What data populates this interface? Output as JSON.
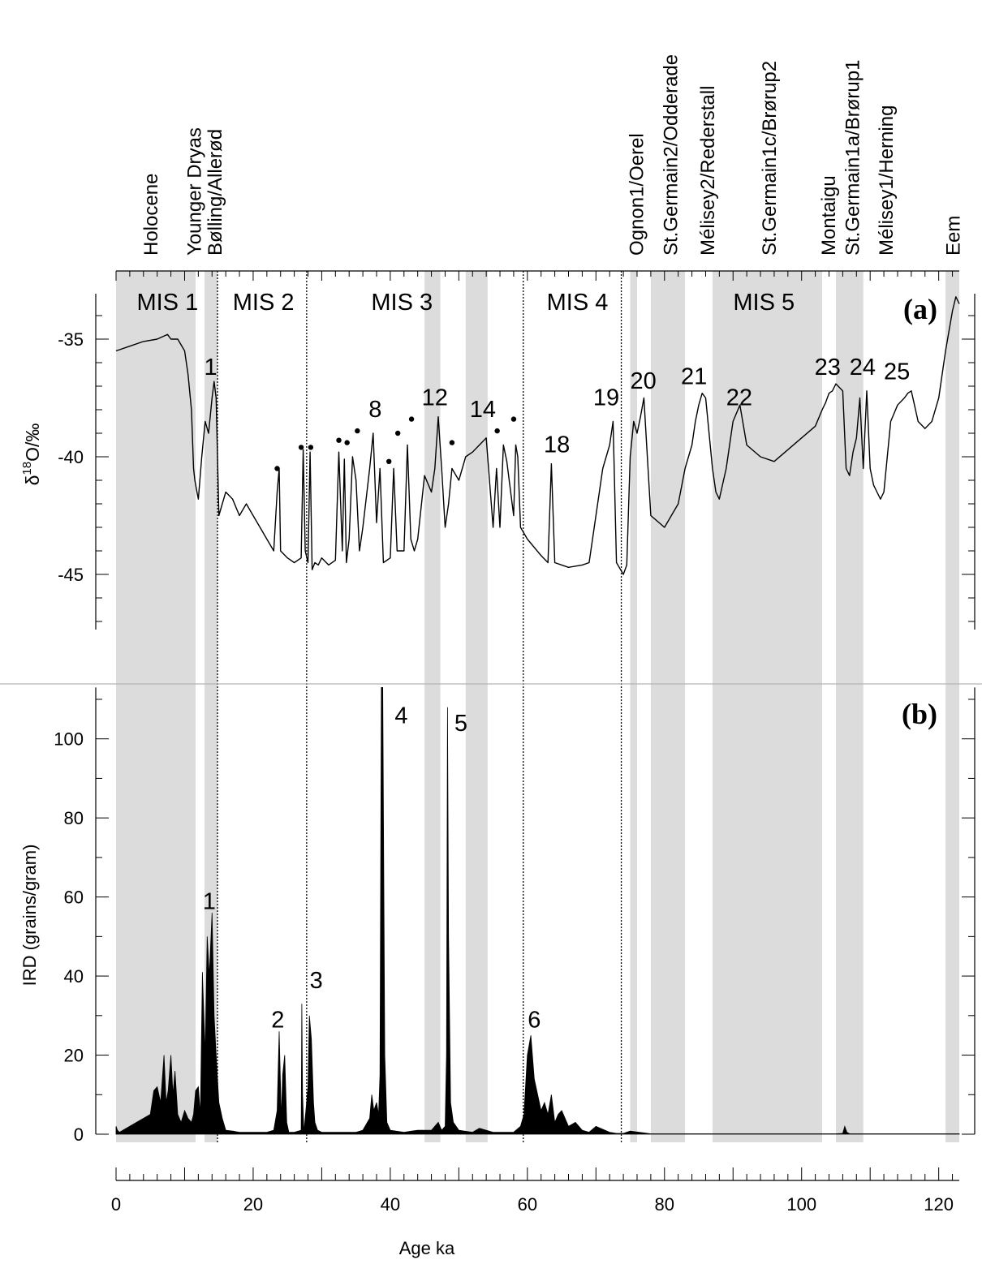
{
  "chart_data": [
    {
      "panel": "(a)",
      "type": "line",
      "ylabel": "δ18O/‰",
      "ylabel_parts": {
        "delta": "δ",
        "sup": "18",
        "rest": "O/‰"
      },
      "xlabel": "Age ka",
      "xlim": [
        0,
        123
      ],
      "ylim": [
        -49.5,
        -33
      ],
      "y_inverted": true,
      "yticks": [
        -35,
        -40,
        -45
      ],
      "ytick_labels": [
        "-35",
        "-40",
        "-45"
      ],
      "xticks": [
        0,
        20,
        40,
        60,
        80,
        100,
        120
      ],
      "xtick_labels": [
        "0",
        "20",
        "40",
        "60",
        "80",
        "100",
        "120"
      ],
      "series": [
        {
          "x": [
            0,
            2,
            4,
            6,
            7.5,
            8,
            9,
            10,
            10.5,
            11,
            11.3,
            11.5,
            11.8,
            12,
            12.5,
            13,
            13.5,
            14,
            14.3,
            14.6,
            14.8,
            15,
            15.5,
            16,
            17,
            18,
            19,
            20,
            21,
            22,
            23,
            23.5,
            23.8,
            24,
            25,
            26,
            27,
            27.3,
            27.6,
            28,
            28.3,
            28.6,
            29,
            29.5,
            30,
            31,
            32,
            32.5,
            33,
            33.3,
            33.6,
            34,
            34.5,
            35,
            35.5,
            36,
            37,
            37.5,
            38,
            38.5,
            39,
            40,
            40.5,
            41,
            42,
            42.5,
            43,
            43.5,
            44,
            45,
            46,
            46.5,
            47,
            47.5,
            48,
            48.5,
            49,
            50,
            51,
            52,
            53,
            54,
            55,
            55.5,
            56,
            56.5,
            57,
            58,
            58.3,
            58.6,
            59,
            60,
            62,
            63,
            63.5,
            64,
            65,
            66,
            68,
            69,
            69.5,
            70,
            71,
            72,
            72.5,
            73,
            74,
            74.5,
            75,
            75.5,
            76,
            76.5,
            77,
            78,
            80,
            82,
            83,
            84,
            84.5,
            85,
            85.5,
            86,
            87,
            87.5,
            88,
            89,
            90,
            91,
            92,
            94,
            96,
            98,
            100,
            102,
            103,
            103.5,
            104,
            104.5,
            105,
            106,
            106.5,
            107,
            107.5,
            108,
            108.5,
            109,
            109.5,
            110,
            110.5,
            111,
            111.5,
            112,
            113,
            114,
            115,
            115.5,
            116,
            117,
            118,
            119,
            120,
            121,
            122,
            122.5,
            123
          ],
          "y": [
            -35.5,
            -35.3,
            -35.1,
            -35,
            -34.8,
            -35,
            -35,
            -35.5,
            -36.5,
            -38,
            -40.5,
            -41,
            -41.5,
            -41.8,
            -40,
            -38.5,
            -39,
            -37.5,
            -36.8,
            -37.5,
            -40,
            -42.5,
            -42,
            -41.5,
            -41.8,
            -42.5,
            -42,
            -42.5,
            -43,
            -43.5,
            -44,
            -41.5,
            -40.5,
            -44,
            -44.3,
            -44.5,
            -44.3,
            -39.7,
            -44,
            -44.5,
            -39.8,
            -44.8,
            -44.5,
            -44.6,
            -44.3,
            -44.6,
            -44.4,
            -39.8,
            -44,
            -40.1,
            -44.5,
            -43.5,
            -40,
            -41,
            -44,
            -43,
            -40.5,
            -39,
            -42.8,
            -40.5,
            -44.5,
            -44.3,
            -40.5,
            -44,
            -44,
            -39.5,
            -43.5,
            -44,
            -43.5,
            -40.8,
            -41.5,
            -40.5,
            -38.3,
            -40.5,
            -43,
            -42,
            -40.5,
            -41,
            -40,
            -39.8,
            -39.5,
            -39.2,
            -43,
            -40.5,
            -43,
            -39.5,
            -40.2,
            -42.5,
            -39.5,
            -40,
            -43,
            -43.5,
            -44.2,
            -44.5,
            -40.3,
            -44.5,
            -44.6,
            -44.7,
            -44.6,
            -44.5,
            -43.5,
            -42.5,
            -40.5,
            -39.5,
            -38.5,
            -44.5,
            -45,
            -44.6,
            -40,
            -38.5,
            -39,
            -38.3,
            -37.5,
            -42.5,
            -43,
            -42,
            -40.5,
            -39.5,
            -38.5,
            -37.8,
            -37.3,
            -37.5,
            -40.5,
            -41.5,
            -41.8,
            -40.5,
            -38.5,
            -37.8,
            -39.5,
            -40,
            -40.2,
            -39.7,
            -39.2,
            -38.7,
            -38,
            -37.7,
            -37.3,
            -37.2,
            -36.9,
            -37.2,
            -40.5,
            -40.8,
            -39.8,
            -39.2,
            -37.5,
            -40.5,
            -37.2,
            -40.5,
            -41.2,
            -41.5,
            -41.8,
            -41.5,
            -38.5,
            -37.8,
            -37.5,
            -37.3,
            -37.2,
            -38.5,
            -38.8,
            -38.5,
            -37.5,
            -35.5,
            -33.8,
            -33.2,
            -33.5
          ]
        }
      ],
      "event_labels": [
        {
          "label": "1",
          "x": 13.8,
          "y": -36.2
        },
        {
          "label": "8",
          "x": 37.8,
          "y": -38
        },
        {
          "label": "12",
          "x": 46.5,
          "y": -37.5
        },
        {
          "label": "14",
          "x": 53.5,
          "y": -38
        },
        {
          "label": "18",
          "x": 64.3,
          "y": -39.5
        },
        {
          "label": "19",
          "x": 71.5,
          "y": -37.5
        },
        {
          "label": "20",
          "x": 76.9,
          "y": -36.8
        },
        {
          "label": "21",
          "x": 84.3,
          "y": -36.6
        },
        {
          "label": "22",
          "x": 90.9,
          "y": -37.5
        },
        {
          "label": "23",
          "x": 103.8,
          "y": -36.2
        },
        {
          "label": "24",
          "x": 108.9,
          "y": -36.2
        },
        {
          "label": "25",
          "x": 113.9,
          "y": -36.4
        }
      ],
      "dots": [
        {
          "x": 23.5,
          "y": -40.5
        },
        {
          "x": 27,
          "y": -39.6
        },
        {
          "x": 28.4,
          "y": -39.6
        },
        {
          "x": 32.5,
          "y": -39.3
        },
        {
          "x": 33.7,
          "y": -39.4
        },
        {
          "x": 35.2,
          "y": -38.9
        },
        {
          "x": 39.8,
          "y": -40.2
        },
        {
          "x": 41.1,
          "y": -39
        },
        {
          "x": 43.1,
          "y": -38.4
        },
        {
          "x": 49,
          "y": -39.4
        },
        {
          "x": 55.6,
          "y": -38.9
        },
        {
          "x": 58,
          "y": -38.4
        }
      ],
      "stage_labels": [
        {
          "label": "MIS 1",
          "x": 7.5
        },
        {
          "label": "MIS 2",
          "x": 21.5
        },
        {
          "label": "MIS 3",
          "x": 41.7
        },
        {
          "label": "MIS 4",
          "x": 67.3
        },
        {
          "label": "MIS 5",
          "x": 94.5
        }
      ]
    },
    {
      "panel": "(b)",
      "type": "area",
      "ylabel": "IRD (grains/gram)",
      "xlabel": "Age ka",
      "xlim": [
        0,
        123
      ],
      "ylim": [
        0,
        113
      ],
      "yticks": [
        0,
        20,
        40,
        60,
        80,
        100
      ],
      "ytick_labels": [
        "0",
        "20",
        "40",
        "60",
        "80",
        "100"
      ],
      "series": [
        {
          "x": [
            0,
            0.2,
            0.5,
            3,
            5,
            5.5,
            6,
            6.5,
            7,
            7.3,
            7.6,
            8,
            8.3,
            8.6,
            9,
            9.5,
            10,
            10.5,
            11,
            11.3,
            11.6,
            12,
            12.3,
            12.6,
            13,
            13.3,
            13.6,
            14,
            14.3,
            14.6,
            15,
            15.5,
            16,
            17,
            18,
            20,
            22,
            23,
            23.5,
            23.8,
            24.1,
            24.3,
            24.6,
            24.9,
            25.2,
            26,
            27,
            27.1,
            27.2,
            27.4,
            28,
            28.2,
            28.5,
            28.8,
            29,
            29.4,
            30,
            32,
            35,
            36,
            37,
            37.3,
            37.6,
            38,
            38.3,
            38.5,
            38.7,
            38.9,
            39.2,
            39.5,
            40,
            42,
            44,
            46,
            47,
            47.5,
            48,
            48.2,
            48.35,
            48.5,
            48.8,
            49.2,
            50,
            52,
            53,
            55,
            58,
            59,
            59.5,
            60,
            60.5,
            61,
            61.5,
            62,
            62.5,
            63,
            63.5,
            64,
            64.5,
            65,
            66,
            67,
            68,
            69,
            70,
            72,
            73,
            74,
            75,
            78,
            85,
            95,
            105,
            106,
            106.3,
            106.6,
            107,
            108,
            115,
            123
          ],
          "y": [
            2,
            1,
            0.5,
            3,
            5,
            11,
            12,
            8,
            20,
            8,
            11,
            20,
            10,
            16,
            5,
            3,
            6,
            4,
            3,
            5,
            11,
            12,
            5,
            41,
            20,
            50,
            40,
            56,
            30,
            20,
            8,
            4,
            1,
            0.8,
            0.5,
            0.5,
            0.5,
            1,
            6,
            26,
            4,
            15,
            20,
            3,
            0.5,
            0.5,
            1,
            33,
            10,
            0.5,
            12,
            30,
            24,
            8,
            3,
            1,
            0.5,
            0.5,
            0.5,
            1,
            4,
            10,
            6,
            8,
            5,
            15,
            113,
            113,
            20,
            3,
            1,
            0.5,
            1,
            1,
            3,
            1,
            2,
            20,
            108,
            50,
            8,
            3,
            1,
            0.5,
            1.5,
            0.5,
            0.5,
            2,
            5,
            20,
            25,
            14,
            10,
            6,
            8,
            5,
            10,
            3,
            5,
            6,
            2,
            3,
            1,
            0.5,
            2,
            0.5,
            0.2,
            0.2,
            0.8,
            0.1,
            0.1,
            0.1,
            0.1,
            0.2,
            2,
            0.5,
            0.1,
            0.1,
            0.1,
            0.1
          ]
        }
      ],
      "event_labels": [
        {
          "label": "1",
          "x": 13.6,
          "y": 59
        },
        {
          "label": "2",
          "x": 23.6,
          "y": 29
        },
        {
          "label": "3",
          "x": 29.2,
          "y": 39
        },
        {
          "label": "4",
          "x": 41.6,
          "y": 106
        },
        {
          "label": "5",
          "x": 50.3,
          "y": 104
        },
        {
          "label": "6",
          "x": 61,
          "y": 29
        }
      ]
    }
  ],
  "shared": {
    "shaded_intervals": [
      [
        0,
        11.6
      ],
      [
        12.9,
        14.8
      ],
      [
        45,
        47.3
      ],
      [
        51,
        54.2
      ],
      [
        75,
        76
      ],
      [
        78,
        83
      ],
      [
        87,
        103
      ],
      [
        105,
        109
      ],
      [
        121,
        123
      ]
    ],
    "boundaries": [
      14.8,
      27.8,
      59.4,
      73.7
    ],
    "colors": {
      "shade": "#dcdcdc",
      "line": "#000000",
      "panel_divider": "#b4b4b4"
    }
  },
  "period_labels": [
    {
      "text": "Holocene",
      "x": 5.0
    },
    {
      "text": "Younger Dryas",
      "x": 11.3
    },
    {
      "text": "Bølling/Allerød",
      "x": 14.3
    },
    {
      "text": "Ognon1/Oerel",
      "x": 75.8
    },
    {
      "text": "St.Germain2/Odderade",
      "x": 80.8
    },
    {
      "text": "Mélisey2/Rederstall",
      "x": 86.2
    },
    {
      "text": "St.Germain1c/Brørup2",
      "x": 95.2
    },
    {
      "text": "Montaigu",
      "x": 103.8
    },
    {
      "text": "St.Germain1a/Brørup1",
      "x": 107.3
    },
    {
      "text": "Mélisey1/Herning",
      "x": 112.2
    },
    {
      "text": "Eem",
      "x": 122
    }
  ]
}
